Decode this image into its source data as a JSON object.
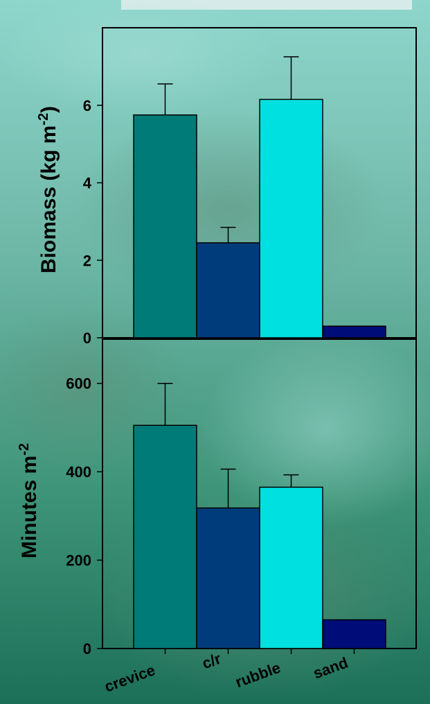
{
  "colors": {
    "crevice": "#007B78",
    "c/r": "#003C7C",
    "rubble": "#00E0E0",
    "sand": "#000C78",
    "background_top": "#7FCFC4",
    "background_bottom": "#1F7A60"
  },
  "chart_data": [
    {
      "type": "bar",
      "categories": [
        "crevice",
        "c/r",
        "rubble",
        "sand"
      ],
      "values": [
        5.75,
        2.45,
        6.15,
        0.3
      ],
      "errors": [
        0.8,
        0.4,
        1.1,
        0
      ],
      "ylabel_main": "Biomass (kg m",
      "ylabel_sup": "-2",
      "ylabel_end": ")",
      "yticks": [
        "0",
        "2",
        "4",
        "6"
      ],
      "ylim": [
        0,
        8
      ],
      "grid": false
    },
    {
      "type": "bar",
      "categories": [
        "crevice",
        "c/r",
        "rubble",
        "sand"
      ],
      "values": [
        505,
        318,
        365,
        65
      ],
      "errors": [
        95,
        88,
        28,
        0
      ],
      "ylabel_main": "Minutes m",
      "ylabel_sup": "-2",
      "yticks": [
        "0",
        "200",
        "400",
        "600"
      ],
      "ylim": [
        0,
        700
      ],
      "grid": false
    }
  ],
  "x_tick_labels": [
    "crevice",
    "c/r",
    "rubble",
    "sand"
  ]
}
